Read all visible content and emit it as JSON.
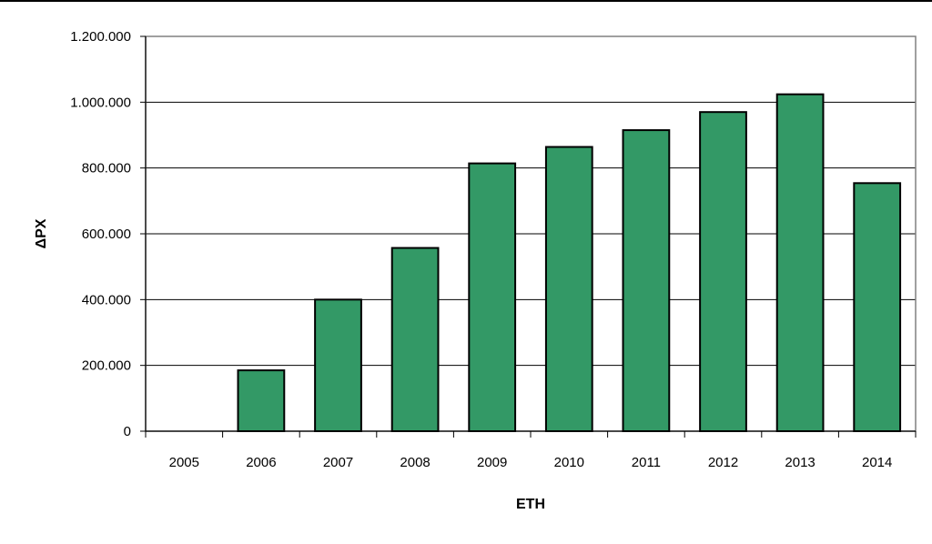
{
  "chart_data": {
    "type": "bar",
    "title": "",
    "xlabel": "ETH",
    "ylabel": "ΔΡΧ",
    "categories": [
      "2005",
      "2006",
      "2007",
      "2008",
      "2009",
      "2010",
      "2011",
      "2012",
      "2013",
      "2014"
    ],
    "values": [
      0,
      185000,
      400000,
      557000,
      814000,
      864000,
      915000,
      970000,
      1024000,
      754000
    ],
    "ylim": [
      0,
      1200000
    ],
    "y_ticks": [
      {
        "value": 0,
        "label": "0"
      },
      {
        "value": 200000,
        "label": "200.000"
      },
      {
        "value": 400000,
        "label": "400.000"
      },
      {
        "value": 600000,
        "label": "600.000"
      },
      {
        "value": 800000,
        "label": "800.000"
      },
      {
        "value": 1000000,
        "label": "1.000.000"
      },
      {
        "value": 1200000,
        "label": "1.200.000"
      }
    ],
    "grid": true,
    "legend": "none",
    "colors": {
      "bar_fill": "#339966",
      "bar_stroke": "#000000",
      "grid": "#000000",
      "frame": "#808080"
    }
  }
}
